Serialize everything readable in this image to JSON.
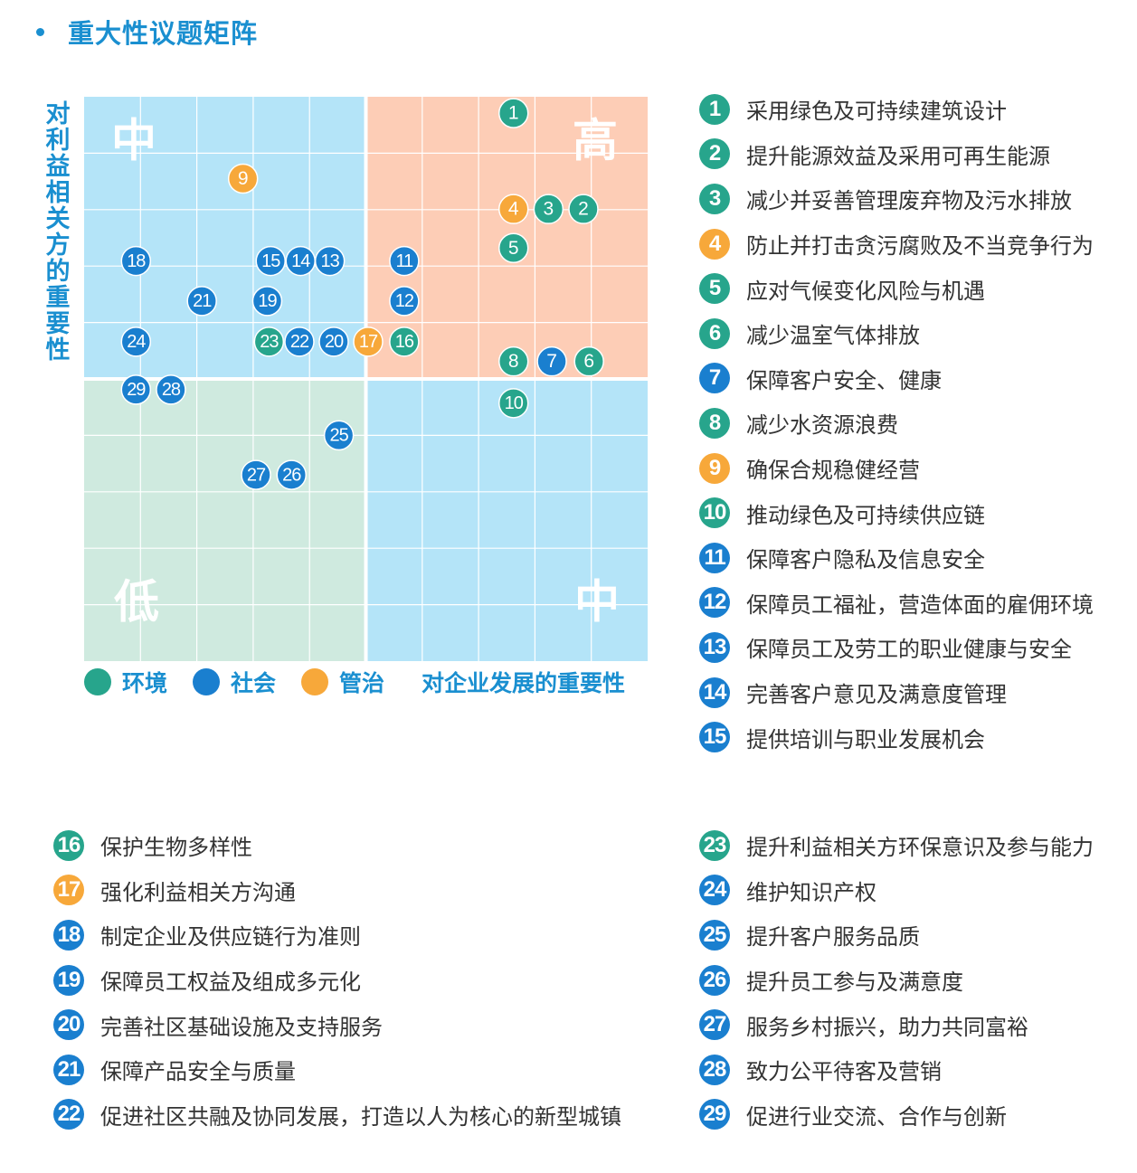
{
  "title": "重大性议题矩阵",
  "colors": {
    "env": "#27a58c",
    "social": "#1a7fcf",
    "gov": "#f7a83a",
    "accent": "#1a8fd0",
    "quad_mid": "#b4e4f8",
    "quad_high": "#fdcdb6",
    "quad_low": "#cfeadf"
  },
  "legend": [
    {
      "label": "环境",
      "category": "env"
    },
    {
      "label": "社会",
      "category": "social"
    },
    {
      "label": "管治",
      "category": "gov"
    }
  ],
  "chart_data": {
    "type": "scatter",
    "title": "重大性议题矩阵",
    "xlabel": "对企业发展的重要性",
    "ylabel": "对利益相关方的重要性",
    "xlim": [
      0,
      100
    ],
    "ylim": [
      0,
      100
    ],
    "grid": true,
    "quadrants": [
      {
        "position": "top-left",
        "label": "中"
      },
      {
        "position": "top-right",
        "label": "高"
      },
      {
        "position": "bottom-left",
        "label": "低"
      },
      {
        "position": "bottom-right",
        "label": "中"
      }
    ],
    "series": [
      {
        "name": "环境",
        "category": "env"
      },
      {
        "name": "社会",
        "category": "social"
      },
      {
        "name": "管治",
        "category": "gov"
      }
    ],
    "points": [
      {
        "id": "1",
        "x": 76.2,
        "y": 97.1,
        "category": "env"
      },
      {
        "id": "2",
        "x": 88.6,
        "y": 80.1,
        "category": "env"
      },
      {
        "id": "3",
        "x": 82.4,
        "y": 80.1,
        "category": "env"
      },
      {
        "id": "4",
        "x": 76.2,
        "y": 80.1,
        "category": "gov"
      },
      {
        "id": "5",
        "x": 76.2,
        "y": 73.2,
        "category": "env"
      },
      {
        "id": "6",
        "x": 89.6,
        "y": 53.1,
        "category": "env"
      },
      {
        "id": "7",
        "x": 83.0,
        "y": 53.1,
        "category": "social"
      },
      {
        "id": "8",
        "x": 76.2,
        "y": 53.1,
        "category": "env"
      },
      {
        "id": "9",
        "x": 28.2,
        "y": 85.5,
        "category": "gov"
      },
      {
        "id": "10",
        "x": 76.2,
        "y": 45.7,
        "category": "env"
      },
      {
        "id": "11",
        "x": 56.8,
        "y": 70.9,
        "category": "social"
      },
      {
        "id": "12",
        "x": 56.8,
        "y": 63.8,
        "category": "social"
      },
      {
        "id": "13",
        "x": 43.6,
        "y": 70.9,
        "category": "social"
      },
      {
        "id": "14",
        "x": 38.4,
        "y": 70.9,
        "category": "social"
      },
      {
        "id": "15",
        "x": 33.1,
        "y": 70.9,
        "category": "social"
      },
      {
        "id": "16",
        "x": 56.8,
        "y": 56.6,
        "category": "env"
      },
      {
        "id": "17",
        "x": 50.4,
        "y": 56.6,
        "category": "gov"
      },
      {
        "id": "18",
        "x": 9.2,
        "y": 70.9,
        "category": "social"
      },
      {
        "id": "19",
        "x": 32.5,
        "y": 63.8,
        "category": "social"
      },
      {
        "id": "20",
        "x": 44.3,
        "y": 56.6,
        "category": "social"
      },
      {
        "id": "21",
        "x": 20.9,
        "y": 63.8,
        "category": "social"
      },
      {
        "id": "22",
        "x": 38.2,
        "y": 56.6,
        "category": "social"
      },
      {
        "id": "23",
        "x": 32.8,
        "y": 56.6,
        "category": "env"
      },
      {
        "id": "24",
        "x": 9.2,
        "y": 56.6,
        "category": "social"
      },
      {
        "id": "25",
        "x": 45.2,
        "y": 40.0,
        "category": "social"
      },
      {
        "id": "26",
        "x": 36.8,
        "y": 33.0,
        "category": "social"
      },
      {
        "id": "27",
        "x": 30.5,
        "y": 33.0,
        "category": "social"
      },
      {
        "id": "28",
        "x": 15.4,
        "y": 48.1,
        "category": "social"
      },
      {
        "id": "29",
        "x": 9.2,
        "y": 48.1,
        "category": "social"
      }
    ]
  },
  "issues": [
    {
      "num": "1",
      "category": "env",
      "text": "采用绿色及可持续建筑设计"
    },
    {
      "num": "2",
      "category": "env",
      "text": "提升能源效益及采用可再生能源"
    },
    {
      "num": "3",
      "category": "env",
      "text": "减少并妥善管理废弃物及污水排放"
    },
    {
      "num": "4",
      "category": "gov",
      "text": "防止并打击贪污腐败及不当竞争行为"
    },
    {
      "num": "5",
      "category": "env",
      "text": "应对气候变化风险与机遇"
    },
    {
      "num": "6",
      "category": "env",
      "text": "减少温室气体排放"
    },
    {
      "num": "7",
      "category": "social",
      "text": "保障客户安全、健康"
    },
    {
      "num": "8",
      "category": "env",
      "text": "减少水资源浪费"
    },
    {
      "num": "9",
      "category": "gov",
      "text": "确保合规稳健经营"
    },
    {
      "num": "10",
      "category": "env",
      "text": "推动绿色及可持续供应链"
    },
    {
      "num": "11",
      "category": "social",
      "text": "保障客户隐私及信息安全"
    },
    {
      "num": "12",
      "category": "social",
      "text": "保障员工福祉，营造体面的雇佣环境"
    },
    {
      "num": "13",
      "category": "social",
      "text": "保障员工及劳工的职业健康与安全"
    },
    {
      "num": "14",
      "category": "social",
      "text": "完善客户意见及满意度管理"
    },
    {
      "num": "15",
      "category": "social",
      "text": "提供培训与职业发展机会"
    },
    {
      "num": "16",
      "category": "env",
      "text": "保护生物多样性"
    },
    {
      "num": "17",
      "category": "gov",
      "text": "强化利益相关方沟通"
    },
    {
      "num": "18",
      "category": "social",
      "text": "制定企业及供应链行为准则"
    },
    {
      "num": "19",
      "category": "social",
      "text": "保障员工权益及组成多元化"
    },
    {
      "num": "20",
      "category": "social",
      "text": "完善社区基础设施及支持服务"
    },
    {
      "num": "21",
      "category": "social",
      "text": "保障产品安全与质量"
    },
    {
      "num": "22",
      "category": "social",
      "text": "促进社区共融及协同发展，打造以人为核心的新型城镇"
    },
    {
      "num": "23",
      "category": "env",
      "text": "提升利益相关方环保意识及参与能力"
    },
    {
      "num": "24",
      "category": "social",
      "text": "维护知识产权"
    },
    {
      "num": "25",
      "category": "social",
      "text": "提升客户服务品质"
    },
    {
      "num": "26",
      "category": "social",
      "text": "提升员工参与及满意度"
    },
    {
      "num": "27",
      "category": "social",
      "text": "服务乡村振兴，助力共同富裕"
    },
    {
      "num": "28",
      "category": "social",
      "text": "致力公平待客及营销"
    },
    {
      "num": "29",
      "category": "social",
      "text": "促进行业交流、合作与创新"
    }
  ]
}
